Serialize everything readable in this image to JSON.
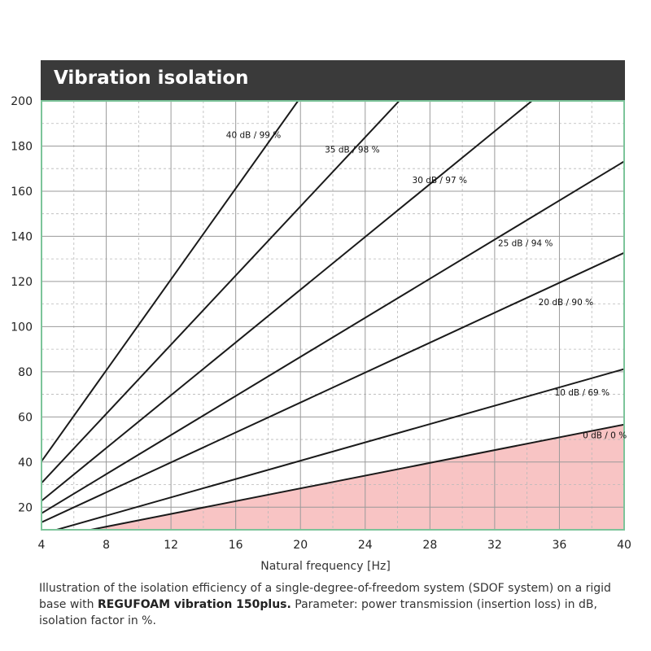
{
  "chart_data": {
    "type": "line",
    "title": "Vibration isolation",
    "xlabel": "Natural frequency [Hz]",
    "ylabel": "",
    "xlim": [
      4,
      40
    ],
    "ylim": [
      10,
      200
    ],
    "x_ticks": [
      4,
      8,
      12,
      16,
      20,
      24,
      28,
      32,
      36,
      40
    ],
    "y_ticks": [
      20,
      40,
      60,
      80,
      100,
      120,
      140,
      160,
      180,
      200
    ],
    "grid": true,
    "shaded_region_color": "#f8c4c4",
    "frame_color": "#7cc49a",
    "series": [
      {
        "name": "0 dB / 0 %",
        "points": [
          [
            4,
            5.7
          ],
          [
            40,
            56.6
          ]
        ]
      },
      {
        "name": "10 dB / 69 %",
        "points": [
          [
            4,
            8.1
          ],
          [
            40,
            81.2
          ]
        ]
      },
      {
        "name": "20 dB / 90 %",
        "points": [
          [
            4,
            13.3
          ],
          [
            40,
            132.7
          ]
        ]
      },
      {
        "name": "25 dB / 94 %",
        "points": [
          [
            4,
            17.3
          ],
          [
            40,
            173.2
          ]
        ]
      },
      {
        "name": "30 dB / 97 %",
        "points": [
          [
            4,
            22.8
          ],
          [
            34.3,
            200
          ]
        ]
      },
      {
        "name": "35 dB / 98 %",
        "points": [
          [
            4,
            30.7
          ],
          [
            26.1,
            200
          ]
        ]
      },
      {
        "name": "40 dB / 99 %",
        "points": [
          [
            4,
            40.3
          ],
          [
            19.85,
            200
          ]
        ]
      }
    ],
    "line_labels": [
      {
        "text": "40 dB / 99 %",
        "x": 17.1,
        "y": 185
      },
      {
        "text": "35 dB / 98 %",
        "x": 23.2,
        "y": 178.5
      },
      {
        "text": "30 dB / 97 %",
        "x": 28.6,
        "y": 165
      },
      {
        "text": "25 dB / 94 %",
        "x": 33.9,
        "y": 137
      },
      {
        "text": "20 dB / 90 %",
        "x": 36.4,
        "y": 111
      },
      {
        "text": "10 dB / 69 %",
        "x": 37.4,
        "y": 71
      },
      {
        "text": "0 dB / 0 %",
        "x": 38.8,
        "y": 52
      }
    ]
  },
  "caption": {
    "part1": "Illustration of the isolation efficiency of a single-degree-of-freedom system (SDOF system) on a rigid base with ",
    "bold": "REGUFOAM vibration 150plus.",
    "part2": "  Parameter: power transmission (insertion loss) in dB, isolation factor in %."
  }
}
